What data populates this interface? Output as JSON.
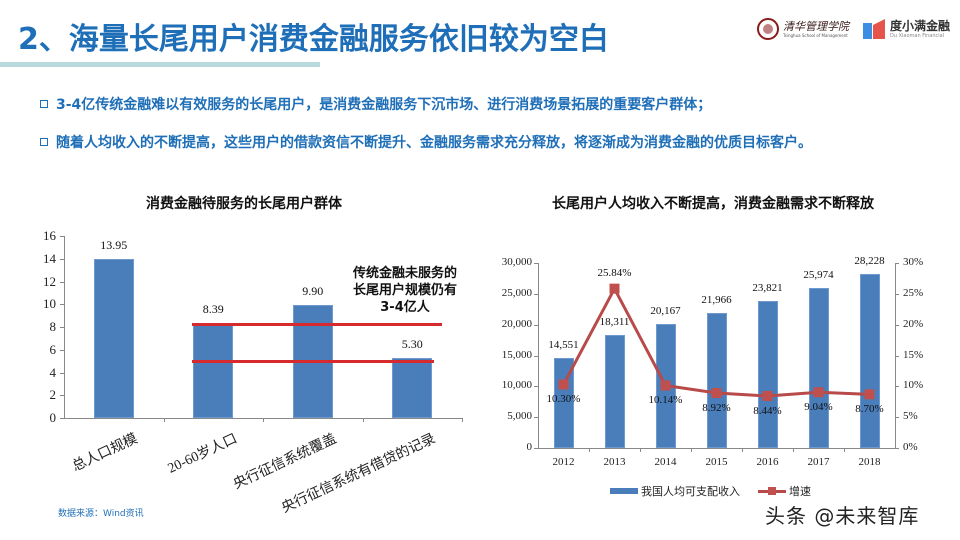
{
  "header": {
    "title": "2、海量长尾用户消费金融服务依旧较为空白",
    "logos": {
      "tsinghua_cn": "清华管理学院",
      "tsinghua_en": "Tsinghua School of Management",
      "du_cn": "度小满金融",
      "du_en": "Du Xiaoman Financial"
    }
  },
  "bullets": [
    "3-4亿传统金融难以有效服务的长尾用户，是消费金融服务下沉市场、进行消费场景拓展的重要客户群体；",
    "随着人均收入的不断提高，这些用户的借款资信不断提升、金融服务需求充分释放，将逐渐成为消费金融的优质目标客户。"
  ],
  "source": "数据来源：Wind资讯",
  "watermark": "头条 @未来智库",
  "colors": {
    "title_blue": "#1f6fb8",
    "bar_blue": "#4a7ebb",
    "line_red": "#c0504d",
    "annotation_red": "#d62a2f",
    "title_underline": "#b9dbe0"
  },
  "chart_data": [
    {
      "type": "bar",
      "title": "消费金融待服务的长尾用户群体",
      "categories": [
        "总人口规模",
        "20-60岁人口",
        "央行征信系统覆盖",
        "央行征信系统有借贷的记录"
      ],
      "values": [
        13.95,
        8.39,
        9.9,
        5.3
      ],
      "value_labels": [
        "13.95",
        "8.39",
        "9.90",
        "5.30"
      ],
      "xlabel": "",
      "ylabel": "",
      "ylim": [
        0,
        16
      ],
      "yticks": [
        "0",
        "2",
        "4",
        "6",
        "8",
        "10",
        "12",
        "14",
        "16"
      ],
      "grid": false,
      "annotations": {
        "text_lines": [
          "传统金融未服务的",
          "长尾用户规模仍有",
          "3-4亿人"
        ],
        "reference_lines": [
          8.3,
          5.0
        ]
      }
    },
    {
      "type": "bar+line",
      "title": "长尾用户人均收入不断提高，消费金融需求不断释放",
      "categories": [
        "2012",
        "2013",
        "2014",
        "2015",
        "2016",
        "2017",
        "2018"
      ],
      "series": [
        {
          "name": "我国人均可支配收入",
          "type": "bar",
          "axis": "left",
          "values": [
            14551,
            18311,
            20167,
            21966,
            23821,
            25974,
            28228
          ],
          "value_labels": [
            "14,551",
            "18,311",
            "20,167",
            "21,966",
            "23,821",
            "25,974",
            "28,228"
          ]
        },
        {
          "name": "增速",
          "type": "line",
          "axis": "right",
          "values": [
            10.3,
            25.84,
            10.14,
            8.92,
            8.44,
            9.04,
            8.7
          ],
          "value_labels": [
            "10.30%",
            "25.84%",
            "10.14%",
            "8.92%",
            "8.44%",
            "9.04%",
            "8.70%"
          ]
        }
      ],
      "ylim_left": [
        0,
        30000
      ],
      "yticks_left": [
        "0",
        "5,000",
        "10,000",
        "15,000",
        "20,000",
        "25,000",
        "30,000"
      ],
      "ylim_right": [
        0,
        30
      ],
      "yticks_right": [
        "0%",
        "5%",
        "10%",
        "15%",
        "20%",
        "25%",
        "30%"
      ],
      "legend_position": "bottom",
      "grid": false
    }
  ]
}
